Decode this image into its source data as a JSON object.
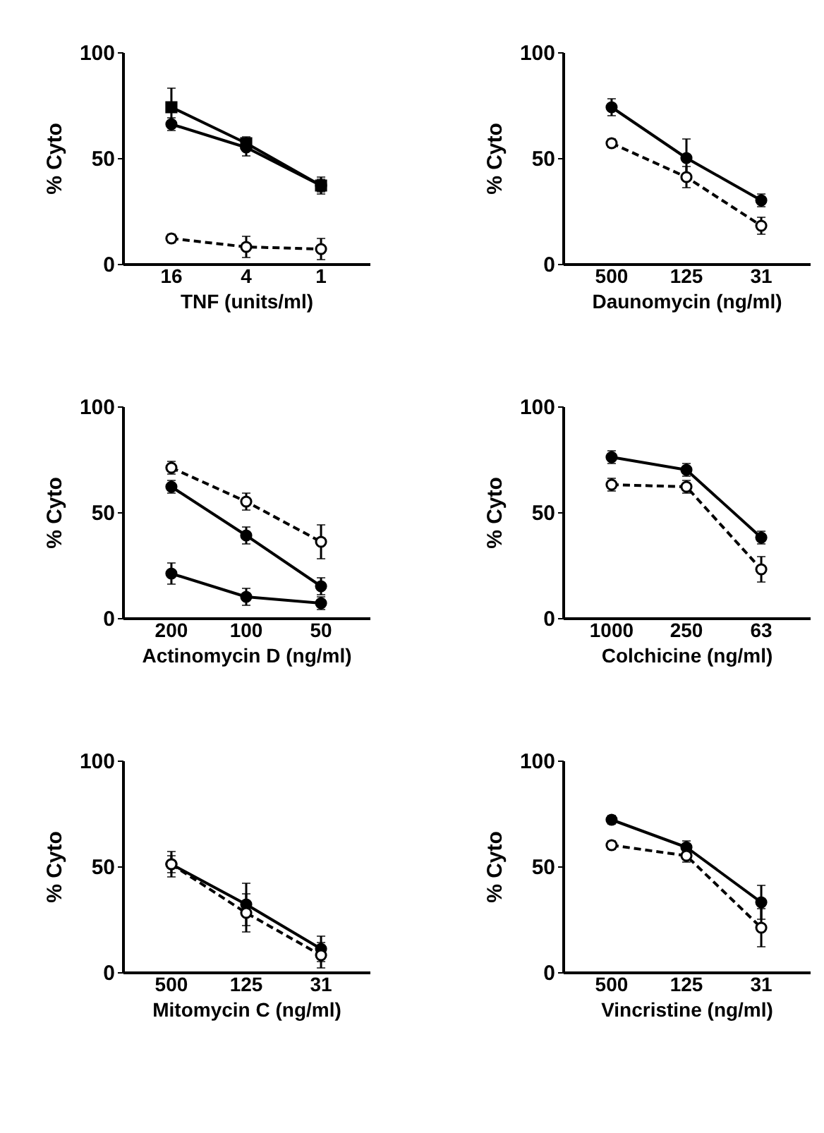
{
  "chart_data": [
    {
      "type": "line",
      "xlabel": "TNF (units/ml)",
      "ylabel": "% Cyto",
      "categories": [
        "16",
        "4",
        "1"
      ],
      "ylim": [
        0,
        100
      ],
      "yticks": [
        0,
        50,
        100
      ],
      "grid": false,
      "series": [
        {
          "color": "#000000",
          "marker": "circle",
          "line_style": "solid",
          "values": [
            66,
            55,
            37
          ],
          "errors": [
            3,
            4,
            4
          ]
        },
        {
          "color": "#000000",
          "marker": "square",
          "line_style": "solid",
          "values": [
            74,
            57,
            37
          ],
          "errors": [
            9,
            3,
            3
          ]
        },
        {
          "color": "#000000",
          "marker": "circle",
          "line_style": "dashed",
          "values": [
            12,
            8,
            7
          ],
          "errors": [
            2,
            5,
            5
          ]
        }
      ]
    },
    {
      "type": "line",
      "xlabel": "Daunomycin (ng/ml)",
      "ylabel": "% Cyto",
      "categories": [
        "500",
        "125",
        "31"
      ],
      "ylim": [
        0,
        100
      ],
      "yticks": [
        0,
        50,
        100
      ],
      "grid": false,
      "series": [
        {
          "color": "#000000",
          "marker": "circle",
          "line_style": "solid",
          "values": [
            74,
            50,
            30
          ],
          "errors": [
            4,
            9,
            3
          ]
        },
        {
          "color": "#000000",
          "marker": "circle",
          "line_style": "dashed",
          "values": [
            57,
            41,
            18
          ],
          "errors": [
            2,
            5,
            4
          ]
        }
      ]
    },
    {
      "type": "line",
      "xlabel": "Actinomycin D (ng/ml)",
      "ylabel": "% Cyto",
      "categories": [
        "200",
        "100",
        "50"
      ],
      "ylim": [
        0,
        100
      ],
      "yticks": [
        0,
        50,
        100
      ],
      "grid": false,
      "series": [
        {
          "color": "#000000",
          "marker": "circle",
          "line_style": "dashed",
          "values": [
            71,
            55,
            36
          ],
          "errors": [
            3,
            4,
            8
          ]
        },
        {
          "color": "#000000",
          "marker": "circle",
          "line_style": "solid",
          "values": [
            62,
            39,
            15
          ],
          "errors": [
            3,
            4,
            4
          ]
        },
        {
          "color": "#000000",
          "marker": "circle",
          "line_style": "solid",
          "values": [
            21,
            10,
            7
          ],
          "errors": [
            5,
            4,
            3
          ]
        }
      ]
    },
    {
      "type": "line",
      "xlabel": "Colchicine (ng/ml)",
      "ylabel": "% Cyto",
      "categories": [
        "1000",
        "250",
        "63"
      ],
      "ylim": [
        0,
        100
      ],
      "yticks": [
        0,
        50,
        100
      ],
      "grid": false,
      "series": [
        {
          "color": "#000000",
          "marker": "circle",
          "line_style": "solid",
          "values": [
            76,
            70,
            38
          ],
          "errors": [
            3,
            3,
            3
          ]
        },
        {
          "color": "#000000",
          "marker": "circle",
          "line_style": "dashed",
          "values": [
            63,
            62,
            23
          ],
          "errors": [
            3,
            3,
            6
          ]
        }
      ]
    },
    {
      "type": "line",
      "xlabel": "Mitomycin C (ng/ml)",
      "ylabel": "% Cyto",
      "categories": [
        "500",
        "125",
        "31"
      ],
      "ylim": [
        0,
        100
      ],
      "yticks": [
        0,
        50,
        100
      ],
      "grid": false,
      "series": [
        {
          "color": "#000000",
          "marker": "circle",
          "line_style": "solid",
          "values": [
            51,
            32,
            11
          ],
          "errors": [
            4,
            10,
            6
          ]
        },
        {
          "color": "#000000",
          "marker": "circle",
          "line_style": "dashed",
          "values": [
            51,
            28,
            8
          ],
          "errors": [
            6,
            9,
            6
          ]
        }
      ]
    },
    {
      "type": "line",
      "xlabel": "Vincristine (ng/ml)",
      "ylabel": "% Cyto",
      "categories": [
        "500",
        "125",
        "31"
      ],
      "ylim": [
        0,
        100
      ],
      "yticks": [
        0,
        50,
        100
      ],
      "grid": false,
      "series": [
        {
          "color": "#000000",
          "marker": "circle",
          "line_style": "solid",
          "values": [
            72,
            59,
            33
          ],
          "errors": [
            2,
            3,
            8
          ]
        },
        {
          "color": "#000000",
          "marker": "circle",
          "line_style": "dashed",
          "values": [
            60,
            55,
            21
          ],
          "errors": [
            2,
            3,
            9
          ]
        }
      ]
    }
  ]
}
